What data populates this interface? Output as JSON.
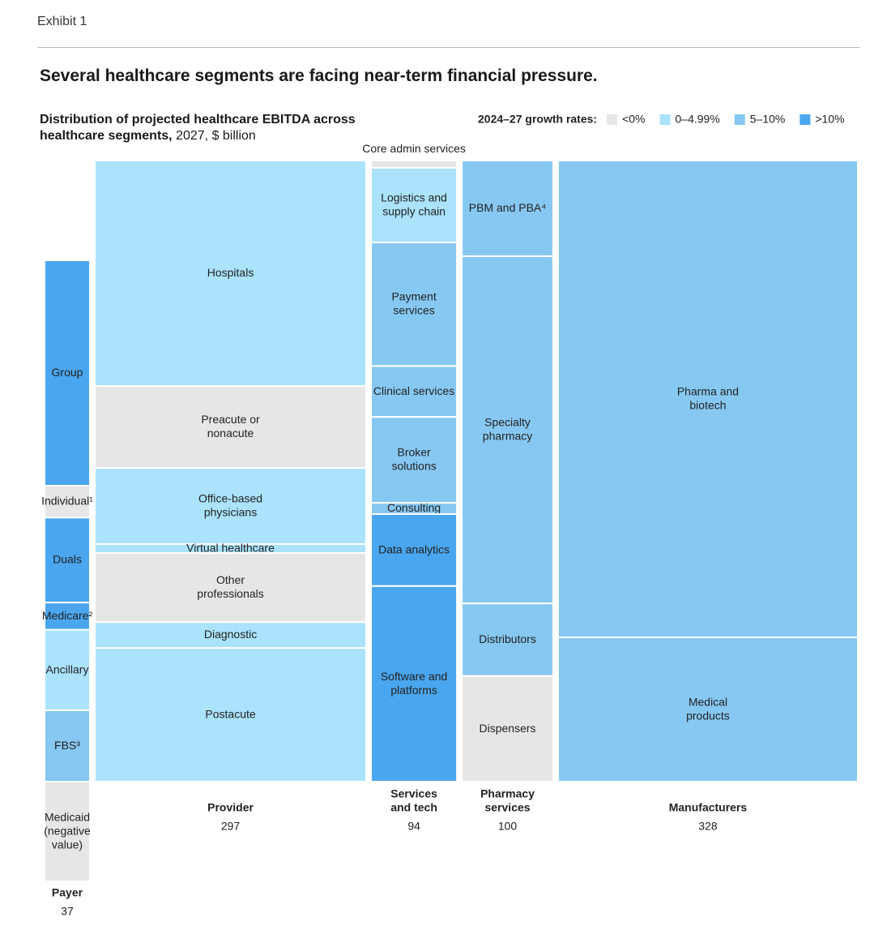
{
  "chart_data": {
    "type": "marimekko",
    "exhibit": "Exhibit 1",
    "title": "Several healthcare segments are facing near-term financial pressure.",
    "subtitle_bold": "Distribution of projected healthcare EBITDA across healthcare segments,",
    "subtitle_rest": "2027, $ billion",
    "legend_title": "2024–27 growth rates:",
    "legend": [
      {
        "label": "<0%",
        "color": "#e6e6e6"
      },
      {
        "label": "0–4.99%",
        "color": "#aae3fb"
      },
      {
        "label": "5–10%",
        "color": "#86c8f2"
      },
      {
        "label": ">10%",
        "color": "#4aa6ee"
      }
    ],
    "columns": [
      {
        "name": [
          "Payer"
        ],
        "total": 37,
        "segments": [
          {
            "label": [
              "Group"
            ],
            "value": 19.9,
            "color": "#4aa6ee"
          },
          {
            "label": [
              "Individual¹"
            ],
            "value": 2.8,
            "color": "#e6e6e6"
          },
          {
            "label": [
              "Duals"
            ],
            "value": 7.5,
            "color": "#4aa6ee"
          },
          {
            "label": [
              "Medicare²"
            ],
            "value": 2.4,
            "color": "#4aa6ee"
          },
          {
            "label": [
              "Ancillary"
            ],
            "value": 7.1,
            "color": "#aae3fb"
          },
          {
            "label": [
              "FBS³"
            ],
            "value": 6.3,
            "color": "#86c8f2"
          },
          {
            "label": [
              "Medicaid",
              "(negative",
              "value)"
            ],
            "value": -8.8,
            "color": "#e6e6e6"
          }
        ]
      },
      {
        "name": [
          "Provider"
        ],
        "total": 297,
        "segments": [
          {
            "label": [
              "Hospitals"
            ],
            "value": 107.8,
            "color": "#aae3fb"
          },
          {
            "label": [
              "Preacute or",
              "nonacute"
            ],
            "value": 39.2,
            "color": "#e6e6e6"
          },
          {
            "label": [
              "Office-based",
              "physicians"
            ],
            "value": 36.4,
            "color": "#aae3fb"
          },
          {
            "label": [
              "Virtual healthcare"
            ],
            "value": 4.3,
            "color": "#aae3fb"
          },
          {
            "label": [
              "Other",
              "professionals"
            ],
            "value": 33.0,
            "color": "#e6e6e6"
          },
          {
            "label": [
              "Diagnostic"
            ],
            "value": 12.4,
            "color": "#aae3fb"
          },
          {
            "label": [
              "Postacute"
            ],
            "value": 63.9,
            "color": "#aae3fb"
          }
        ]
      },
      {
        "name": [
          "Services",
          "and tech"
        ],
        "total": 94,
        "segments": [
          {
            "label": [
              "Core admin services"
            ],
            "value": 1.1,
            "color": "#e6e6e6"
          },
          {
            "label": [
              "Logistics and",
              "supply chain"
            ],
            "value": 11.3,
            "color": "#aae3fb"
          },
          {
            "label": [
              "Payment",
              "services"
            ],
            "value": 18.7,
            "color": "#86c8f2"
          },
          {
            "label": [
              "Clinical services"
            ],
            "value": 7.7,
            "color": "#86c8f2"
          },
          {
            "label": [
              "Broker",
              "solutions"
            ],
            "value": 13.0,
            "color": "#86c8f2"
          },
          {
            "label": [
              "Consulting"
            ],
            "value": 1.7,
            "color": "#86c8f2"
          },
          {
            "label": [
              "Data analytics"
            ],
            "value": 10.9,
            "color": "#4aa6ee"
          },
          {
            "label": [
              "Software and",
              "platforms"
            ],
            "value": 29.6,
            "color": "#4aa6ee"
          }
        ]
      },
      {
        "name": [
          "Pharmacy",
          "services"
        ],
        "total": 100,
        "segments": [
          {
            "label": [
              "PBM and PBA⁴"
            ],
            "value": 15.4,
            "color": "#86c8f2"
          },
          {
            "label": [
              "Specialty",
              "pharmacy"
            ],
            "value": 55.9,
            "color": "#86c8f2"
          },
          {
            "label": [
              "Distributors"
            ],
            "value": 11.7,
            "color": "#86c8f2"
          },
          {
            "label": [
              "Dispensers"
            ],
            "value": 17.0,
            "color": "#e6e6e6"
          }
        ]
      },
      {
        "name": [
          "Manufacturers"
        ],
        "total": 328,
        "segments": [
          {
            "label": [
              "Pharma and",
              "biotech"
            ],
            "value": 251.8,
            "color": "#86c8f2"
          },
          {
            "label": [
              "Medical",
              "products"
            ],
            "value": 76.2,
            "color": "#86c8f2"
          }
        ]
      }
    ]
  }
}
